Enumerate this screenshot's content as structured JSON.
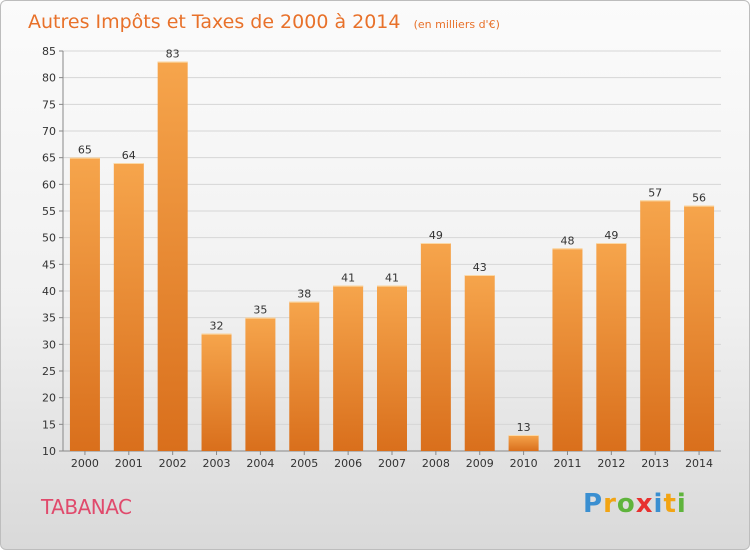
{
  "chart_data": {
    "type": "bar",
    "title": "Autres Impôts et Taxes de 2000 à 2014",
    "unit": "(en milliers d'€)",
    "categories": [
      "2000",
      "2001",
      "2002",
      "2003",
      "2004",
      "2005",
      "2006",
      "2007",
      "2008",
      "2009",
      "2010",
      "2011",
      "2012",
      "2013",
      "2014"
    ],
    "values": [
      65,
      64,
      83,
      32,
      35,
      38,
      41,
      41,
      49,
      43,
      13,
      48,
      49,
      57,
      56
    ],
    "ylim": [
      10,
      85
    ],
    "yticks": [
      10,
      15,
      20,
      25,
      30,
      35,
      40,
      45,
      50,
      55,
      60,
      65,
      70,
      75,
      80,
      85
    ],
    "grid": true,
    "bar_color_top": "#f6a54c",
    "bar_color_bottom": "#d96f1c"
  },
  "commune": "TABANAC",
  "logo": {
    "letters": [
      "P",
      "r",
      "o",
      "x",
      "i",
      "t",
      "i"
    ],
    "colors": [
      "#3a8fd1",
      "#f2a413",
      "#5fb43c",
      "#e8312f",
      "#3a8fd1",
      "#f2a413",
      "#5fb43c"
    ]
  }
}
